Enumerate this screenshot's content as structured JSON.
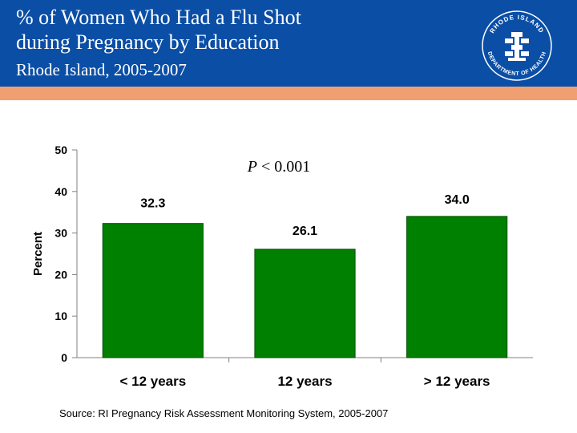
{
  "header": {
    "title_line1": "% of Women Who Had a Flu Shot",
    "title_line2": "during Pregnancy  by Education",
    "subtitle": "Rhode Island, 2005-2007"
  },
  "logo": {
    "top_text": "RHODE ISLAND",
    "ring_text": "DEPARTMENT OF HEALTH"
  },
  "chart_data": {
    "type": "bar",
    "categories": [
      "< 12 years",
      "12 years",
      "> 12 years"
    ],
    "values": [
      32.3,
      26.1,
      34.0
    ],
    "value_labels": [
      "32.3",
      "26.1",
      "34.0"
    ],
    "title": "",
    "xlabel": "",
    "ylabel": "Percent",
    "ylim": [
      0,
      50
    ],
    "yticks": [
      0,
      10,
      20,
      30,
      40,
      50
    ],
    "grid": false,
    "bar_color": "#008000",
    "annotation": "P < 0.001",
    "annotation_italic": "P",
    "annotation_rest": " < 0.001"
  },
  "footer": {
    "source": "Source: RI Pregnancy Risk Assessment Monitoring System, 2005-2007"
  },
  "colors": {
    "header_blue": "#0a4ea6",
    "accent_orange": "#f0a070"
  }
}
